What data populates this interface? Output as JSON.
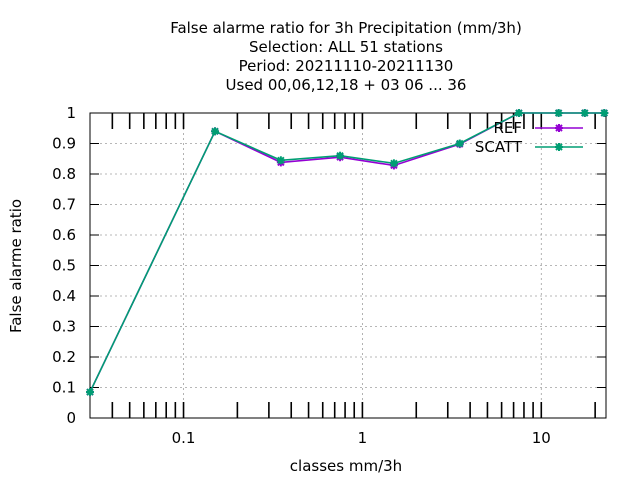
{
  "title": {
    "lines": [
      "False alarme ratio  for 3h Precipitation (mm/3h)",
      "Selection: ALL     51 stations",
      "Period: 20211110-20211130",
      "Used  00,06,12,18  + 03 06 ... 36"
    ]
  },
  "chart_data": {
    "type": "line",
    "xlabel": "classes mm/3h",
    "ylabel": "False alarme ratio",
    "xscale": "log",
    "xlim": [
      0.03,
      23
    ],
    "ylim": [
      0,
      1
    ],
    "x_ticks": [
      0.1,
      1,
      10
    ],
    "x_tick_labels": [
      "0.1",
      "1",
      "10"
    ],
    "y_ticks": [
      0,
      0.1,
      0.2,
      0.3,
      0.4,
      0.5,
      0.6,
      0.7,
      0.8,
      0.9,
      1
    ],
    "y_tick_labels": [
      "0",
      "0.1",
      "0.2",
      "0.3",
      "0.4",
      "0.5",
      "0.6",
      "0.7",
      "0.8",
      "0.9",
      "1"
    ],
    "grid": true,
    "legend_position": "top-right",
    "x": [
      0.03,
      0.15,
      0.35,
      0.75,
      1.5,
      3.5,
      7.5,
      12.5,
      17.5,
      22.5
    ],
    "series": [
      {
        "name": "REF",
        "color": "#9400d3",
        "values": [
          0.085,
          0.94,
          0.838,
          0.855,
          0.828,
          0.898,
          1.0,
          1.0,
          1.0,
          1.0
        ]
      },
      {
        "name": "SCATT",
        "color": "#009e73",
        "values": [
          0.085,
          0.94,
          0.845,
          0.86,
          0.835,
          0.9,
          1.0,
          1.0,
          1.0,
          1.0
        ]
      }
    ]
  }
}
